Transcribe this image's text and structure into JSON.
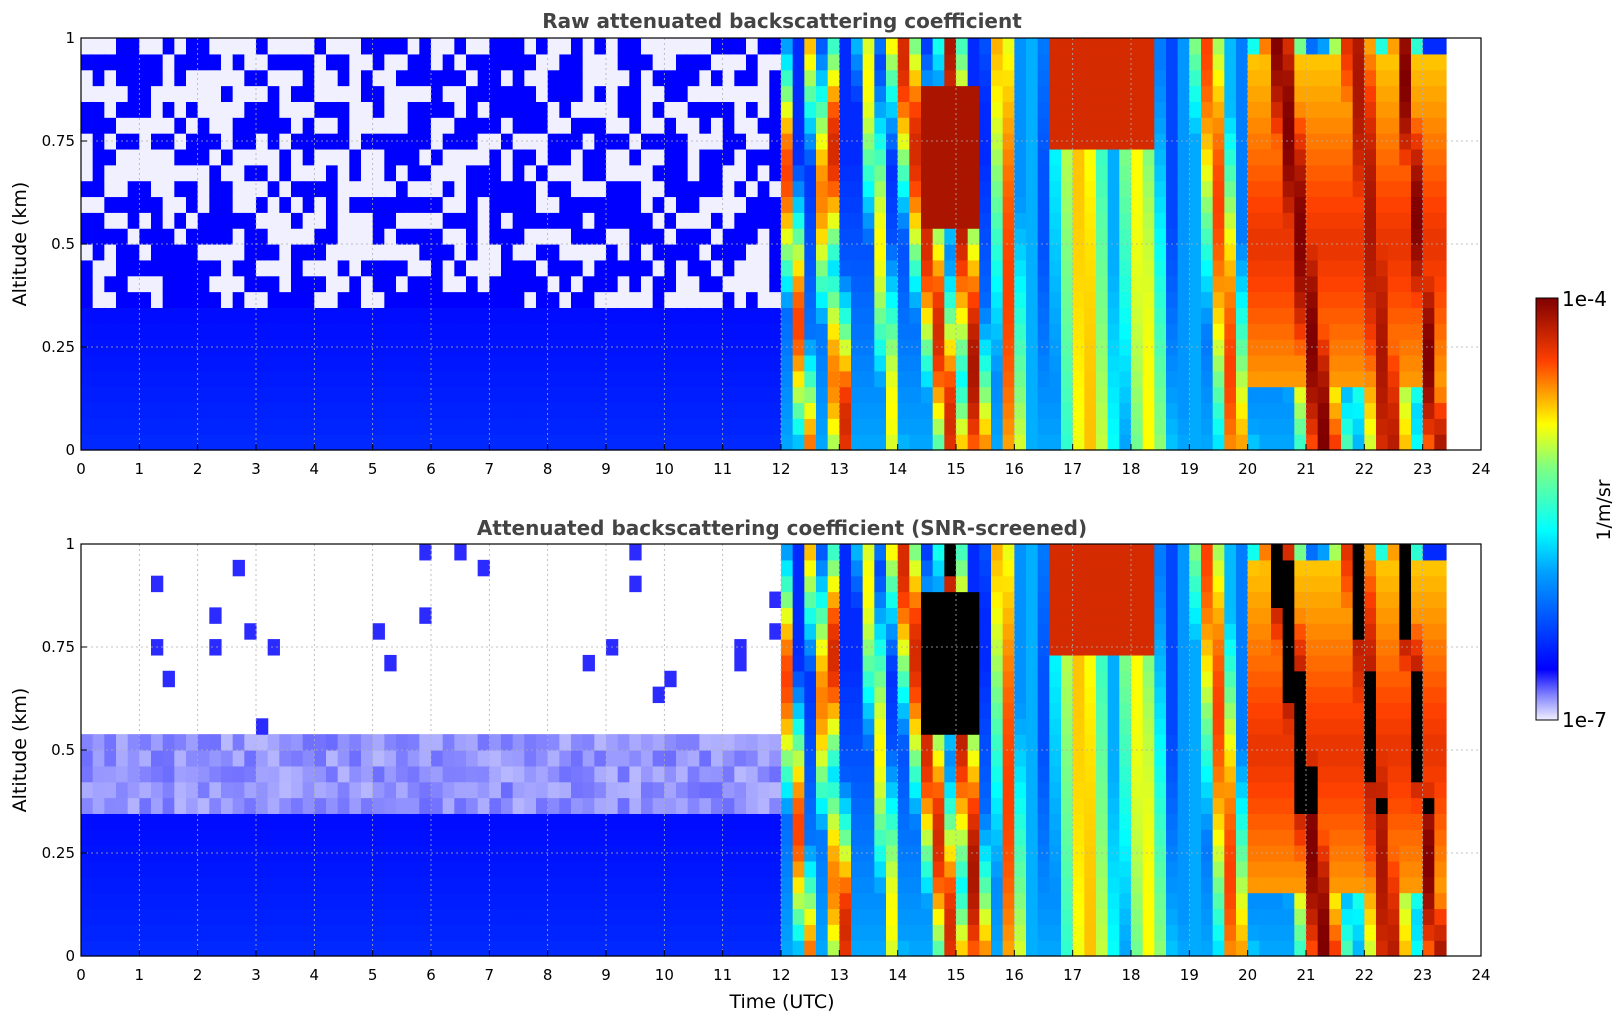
{
  "chart_data": [
    {
      "type": "heatmap",
      "title": "Raw attenuated backscattering coefficient",
      "xlabel": "",
      "ylabel": "Altitude (km)",
      "xlim": [
        0,
        24
      ],
      "ylim": [
        0,
        1
      ],
      "x_ticks": [
        "0",
        "1",
        "2",
        "3",
        "4",
        "5",
        "6",
        "7",
        "8",
        "9",
        "10",
        "11",
        "12",
        "13",
        "14",
        "15",
        "16",
        "17",
        "18",
        "19",
        "20",
        "21",
        "22",
        "23",
        "24"
      ],
      "y_ticks": [
        "0",
        "0.25",
        "0.5",
        "0.75",
        "1"
      ],
      "grid": true,
      "color_scale": "log",
      "value_range": [
        "1e-7",
        "1e-4"
      ],
      "screened": false,
      "data_end_hour": 23.4
    },
    {
      "type": "heatmap",
      "title": "Attenuated backscattering coefficient (SNR-screened)",
      "xlabel": "Time (UTC)",
      "ylabel": "Altitude (km)",
      "xlim": [
        0,
        24
      ],
      "ylim": [
        0,
        1
      ],
      "x_ticks": [
        "0",
        "1",
        "2",
        "3",
        "4",
        "5",
        "6",
        "7",
        "8",
        "9",
        "10",
        "11",
        "12",
        "13",
        "14",
        "15",
        "16",
        "17",
        "18",
        "19",
        "20",
        "21",
        "22",
        "23",
        "24"
      ],
      "y_ticks": [
        "0",
        "0.25",
        "0.5",
        "0.75",
        "1"
      ],
      "grid": true,
      "color_scale": "log",
      "value_range": [
        "1e-7",
        "1e-4"
      ],
      "screened": true,
      "data_end_hour": 23.4
    }
  ],
  "colorbar": {
    "label": "1/m/sr",
    "max_label": "1e-4",
    "min_label": "1e-7",
    "colormap": "jet",
    "low_color": "#f0f0ff",
    "high_color": "#800000"
  }
}
